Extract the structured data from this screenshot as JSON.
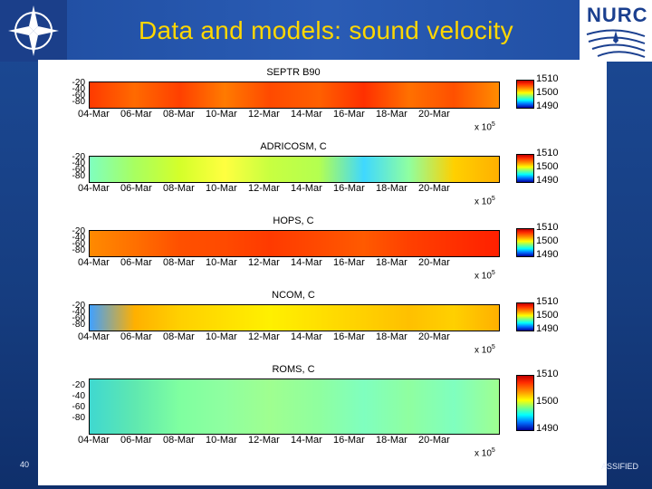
{
  "slide": {
    "title": "Data and models: sound velocity",
    "logo_text": "NURC",
    "slide_number": "40",
    "classification_fragment": "ASSIFIED"
  },
  "figure": {
    "x_ticks": [
      "04-Mar",
      "06-Mar",
      "08-Mar",
      "10-Mar",
      "12-Mar",
      "14-Mar",
      "16-Mar",
      "18-Mar",
      "20-Mar"
    ],
    "x_scale_label": "x 10",
    "x_scale_exponent": "5",
    "colorbar_ticks": [
      "1510",
      "1500",
      "1490"
    ],
    "panels": [
      {
        "title": "SEPTR B90",
        "y_ticks": [
          "-20",
          "-40",
          "-60",
          "-80"
        ],
        "colors": [
          "#ff3a00",
          "#ff6a00",
          "#ff4000",
          "#ff7a00",
          "#ff4a00",
          "#ff6000",
          "#ff3000",
          "#ff7000",
          "#ff5000",
          "#ff8c00"
        ]
      },
      {
        "title": "ADRICOSM, C",
        "y_ticks": [
          "-20",
          "-40",
          "-60",
          "-80"
        ],
        "colors": [
          "#7fffbf",
          "#a8ff60",
          "#d4ff2a",
          "#ffff40",
          "#c8ff40",
          "#b4ff50",
          "#3fd8ff",
          "#8fffa0",
          "#ffd000",
          "#ffb000"
        ]
      },
      {
        "title": "HOPS, C",
        "y_ticks": [
          "-20",
          "-40",
          "-60",
          "-80"
        ],
        "colors": [
          "#ff8a00",
          "#ff7000",
          "#ff5000",
          "#ff4a00",
          "#ff3a00",
          "#ff4a00",
          "#ff5a00",
          "#ff4000",
          "#ff3000",
          "#ff2000"
        ]
      },
      {
        "title": "NCOM, C",
        "y_ticks": [
          "-20",
          "-40",
          "-60",
          "-80"
        ],
        "colors": [
          "#40a0ff",
          "#ffb000",
          "#ffd000",
          "#ffe000",
          "#fff000",
          "#ffe000",
          "#ffd000",
          "#ffc000",
          "#ffd000",
          "#ffb000"
        ]
      },
      {
        "title": "ROMS, C",
        "y_ticks": [
          "-20",
          "-40",
          "-60",
          "-80"
        ],
        "colors": [
          "#3fd8d0",
          "#5fe8b0",
          "#7fffa0",
          "#8fffa0",
          "#9fff90",
          "#8fff9f",
          "#7fffbf",
          "#8fffa0",
          "#7fffbf",
          "#9fff90"
        ]
      }
    ]
  }
}
